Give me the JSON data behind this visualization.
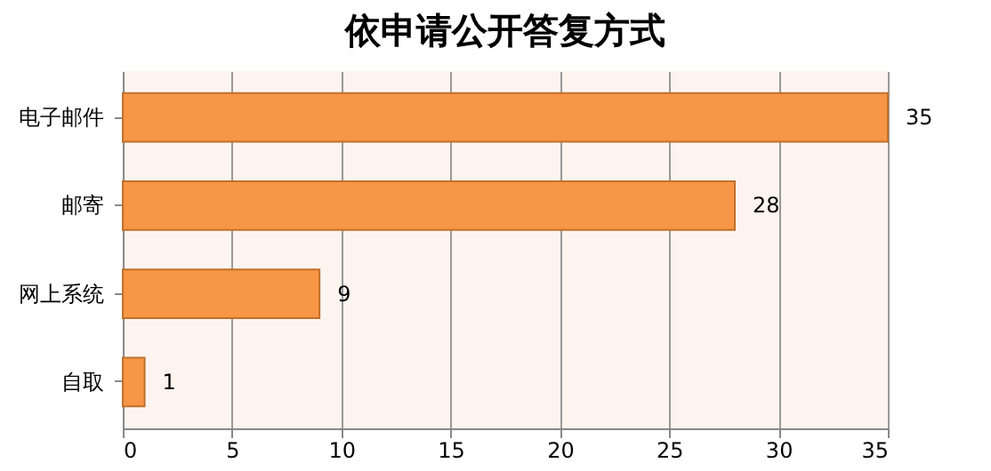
{
  "chart_data": {
    "type": "bar",
    "orientation": "horizontal",
    "title": "依申请公开答复方式",
    "categories": [
      "电子邮件",
      "邮寄",
      "网上系统",
      "自取"
    ],
    "values": [
      35,
      28,
      9,
      1
    ],
    "color": "#f79646",
    "xlim": [
      0,
      35
    ],
    "xticks": [
      0,
      5,
      10,
      15,
      20,
      25,
      30,
      35
    ],
    "grid": "x",
    "data_labels": true
  }
}
